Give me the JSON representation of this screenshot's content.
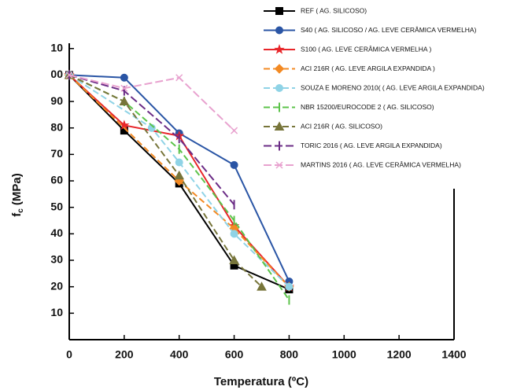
{
  "chart_data": {
    "type": "line",
    "x_label": "Temperatura (ºC)",
    "y_label": {
      "base": "f",
      "sub": "c",
      "unit": "(MPa)"
    },
    "xlim": [
      0,
      1400
    ],
    "xticks": [
      0,
      200,
      400,
      600,
      800,
      1000,
      1200,
      1400
    ],
    "ylim": [
      0,
      112
    ],
    "yticks": [
      10,
      20,
      30,
      40,
      50,
      60,
      70,
      80,
      90,
      {
        "value": 100,
        "label": "00"
      },
      {
        "value": 110,
        "label": "10"
      }
    ],
    "series": [
      {
        "name": "REF ( AG. SILICOSO)",
        "color": "#000000",
        "marker": "square",
        "dash": "",
        "x": [
          0,
          200,
          400,
          600,
          800
        ],
        "values": [
          100,
          79,
          59,
          28,
          19
        ]
      },
      {
        "name": "S40 ( AG. SILICOSO / AG. LEVE CERÂMICA VERMELHA)",
        "color": "#2a55a5",
        "marker": "circle",
        "dash": "",
        "x": [
          0,
          200,
          400,
          600,
          800
        ],
        "values": [
          100,
          99,
          78,
          66,
          22
        ]
      },
      {
        "name": "S100 ( AG. LEVE CERÂMICA VERMELHA )",
        "color": "#e8262a",
        "marker": "star",
        "dash": "",
        "x": [
          0,
          200,
          400,
          600,
          800
        ],
        "values": [
          100,
          81,
          77,
          43,
          20
        ]
      },
      {
        "name": "ACI 216R ( AG. LEVE ARGILA EXPANDIDA )",
        "color": "#f38a23",
        "marker": "diamond",
        "dash": "8 4",
        "x": [
          0,
          400,
          600,
          800
        ],
        "values": [
          100,
          60,
          42,
          20
        ]
      },
      {
        "name": "SOUZA E MORENO 2010( ( AG. LEVE ARGILA EXPANDIDA)",
        "color": "#8fd3e6",
        "marker": "hexagon",
        "dash": "8 4",
        "x": [
          0,
          300,
          400,
          600,
          800
        ],
        "values": [
          100,
          80,
          67,
          40,
          20
        ]
      },
      {
        "name": "NBR 15200/EUROCODE 2 ( AG. SILICOSO)",
        "color": "#5cc34a",
        "marker": "bar",
        "dash": "8 4",
        "x": [
          0,
          200,
          400,
          600,
          800
        ],
        "values": [
          100,
          90,
          72,
          45,
          15
        ]
      },
      {
        "name": "ACI 216R ( AG. SILICOSO)",
        "color": "#77753a",
        "marker": "triangle",
        "dash": "8 4",
        "x": [
          0,
          200,
          400,
          600,
          700
        ],
        "values": [
          100,
          90,
          62,
          30,
          20
        ]
      },
      {
        "name": "TORIC 2016 ( AG. LEVE ARGILA EXPANDIDA)",
        "color": "#6b2c86",
        "marker": "bar",
        "dash": "10 4",
        "x": [
          0,
          200,
          400,
          600
        ],
        "values": [
          100,
          94,
          76,
          51
        ]
      },
      {
        "name": "MARTINS 2016 ( AG. LEVE CERÂMICA VERMELHA)",
        "color": "#e8a2cf",
        "marker": "cross",
        "dash": "10 4",
        "x": [
          0,
          200,
          400,
          600
        ],
        "values": [
          100,
          95,
          99,
          79
        ]
      }
    ]
  }
}
